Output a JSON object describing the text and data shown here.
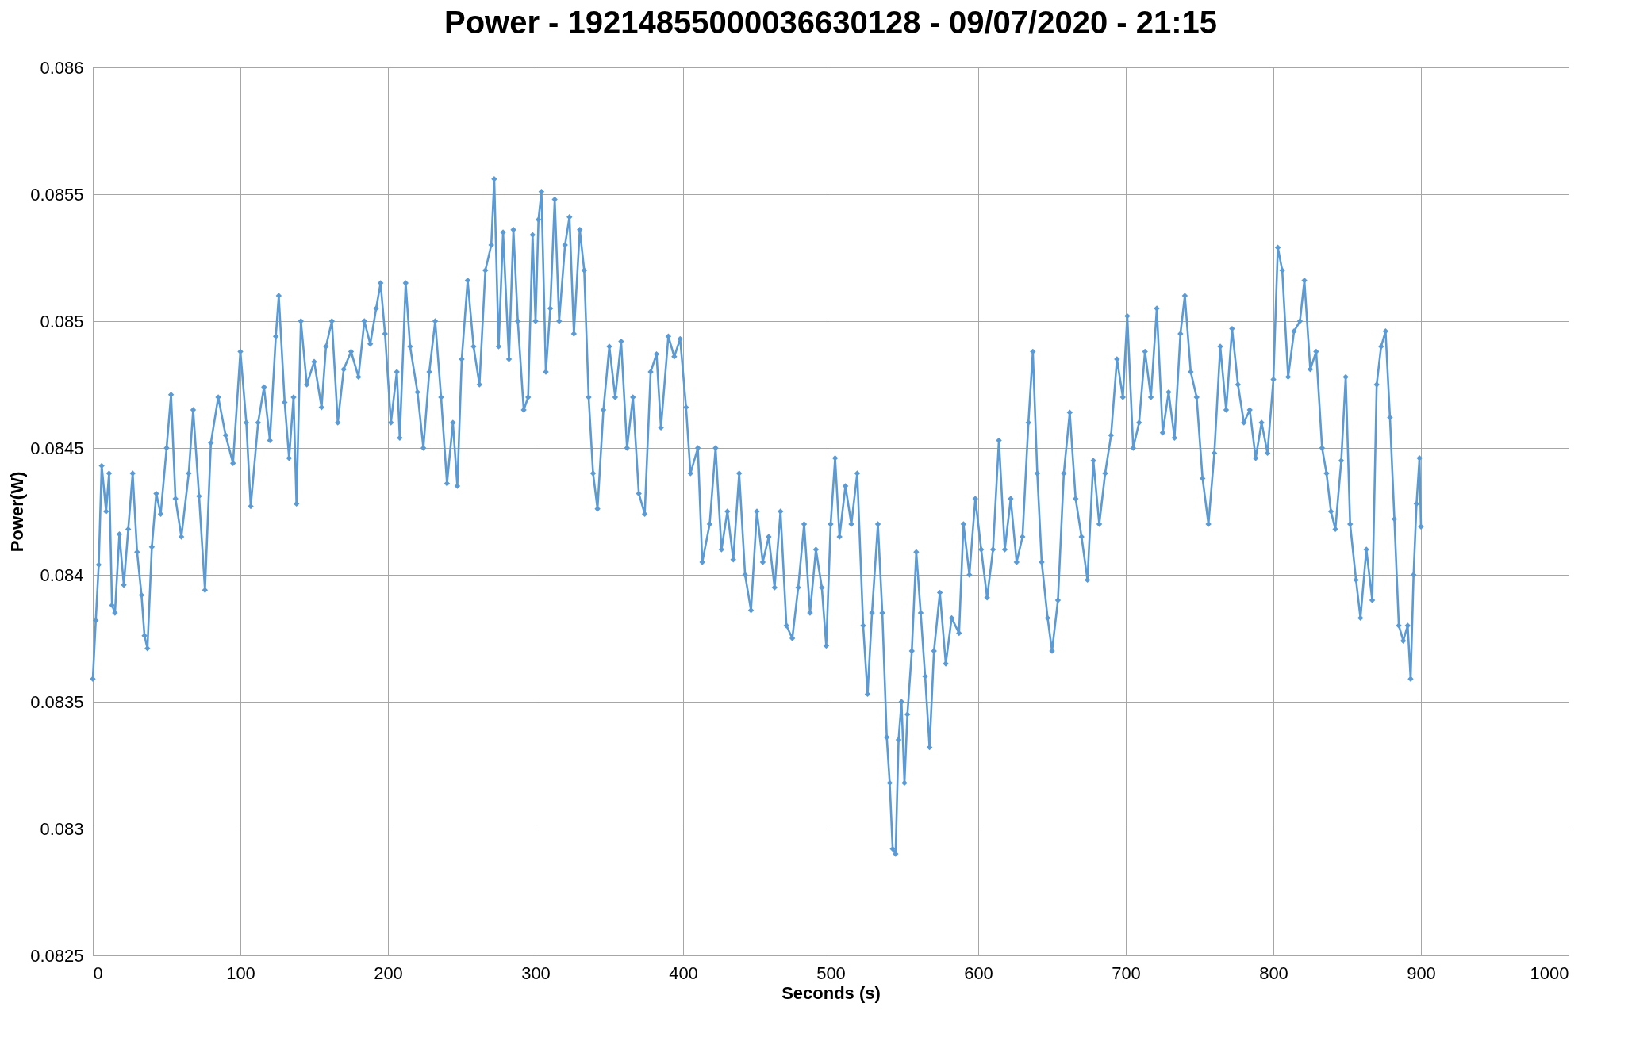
{
  "chart_data": {
    "type": "line",
    "title": "Power - 19214855000036630128 - 09/07/2020 - 21:15",
    "xlabel": "Seconds (s)",
    "ylabel": "Power(W)",
    "xlim": [
      0,
      1000
    ],
    "xticks": [
      0,
      100,
      200,
      300,
      400,
      500,
      600,
      700,
      800,
      900,
      1000
    ],
    "ylim": [
      0.0825,
      0.086
    ],
    "yticks": [
      0.0825,
      0.083,
      0.0835,
      0.084,
      0.0845,
      0.085,
      0.0855,
      0.086
    ],
    "grid": true,
    "marker": "diamond",
    "line_style": "solid",
    "series": [
      {
        "color": "#5b9bd5",
        "x": [
          0,
          2,
          4,
          6,
          9,
          11,
          13,
          15,
          18,
          21,
          24,
          27,
          30,
          33,
          35,
          37,
          40,
          43,
          46,
          50,
          53,
          56,
          60,
          65,
          68,
          72,
          76,
          80,
          85,
          90,
          95,
          100,
          104,
          107,
          112,
          116,
          120,
          124,
          126,
          130,
          133,
          136,
          138,
          141,
          145,
          150,
          155,
          158,
          162,
          166,
          170,
          175,
          180,
          184,
          188,
          192,
          195,
          198,
          202,
          206,
          208,
          212,
          215,
          220,
          224,
          228,
          232,
          236,
          240,
          244,
          247,
          250,
          254,
          258,
          262,
          266,
          270,
          272,
          275,
          278,
          282,
          285,
          288,
          292,
          295,
          298,
          300,
          302,
          304,
          307,
          310,
          313,
          316,
          320,
          323,
          326,
          330,
          333,
          336,
          339,
          342,
          346,
          350,
          354,
          358,
          362,
          366,
          370,
          374,
          378,
          382,
          385,
          390,
          394,
          398,
          402,
          405,
          410,
          413,
          418,
          422,
          426,
          430,
          434,
          438,
          442,
          446,
          450,
          454,
          458,
          462,
          466,
          470,
          474,
          478,
          482,
          486,
          490,
          494,
          497,
          500,
          503,
          506,
          510,
          514,
          518,
          522,
          525,
          528,
          532,
          535,
          538,
          540,
          542,
          544,
          546,
          548,
          550,
          552,
          555,
          558,
          561,
          564,
          567,
          570,
          574,
          578,
          582,
          587,
          590,
          594,
          598,
          602,
          606,
          610,
          614,
          618,
          622,
          626,
          630,
          634,
          637,
          640,
          643,
          647,
          650,
          654,
          658,
          662,
          666,
          670,
          674,
          678,
          682,
          686,
          690,
          694,
          698,
          701,
          705,
          709,
          713,
          717,
          721,
          725,
          729,
          733,
          737,
          740,
          744,
          748,
          752,
          756,
          760,
          764,
          768,
          772,
          776,
          780,
          784,
          788,
          792,
          796,
          800,
          803,
          806,
          810,
          814,
          818,
          821,
          825,
          829,
          833,
          836,
          839,
          842,
          846,
          849,
          852,
          856,
          859,
          863,
          867,
          870,
          873,
          876,
          879,
          882,
          885,
          888,
          891,
          893,
          895,
          897,
          899,
          900
        ],
        "values": [
          0.08359,
          0.08382,
          0.08404,
          0.08443,
          0.08425,
          0.0844,
          0.08388,
          0.08385,
          0.08416,
          0.08396,
          0.08418,
          0.0844,
          0.08409,
          0.08392,
          0.08376,
          0.08371,
          0.08411,
          0.08432,
          0.08424,
          0.0845,
          0.08471,
          0.0843,
          0.08415,
          0.0844,
          0.08465,
          0.08431,
          0.08394,
          0.08452,
          0.0847,
          0.08455,
          0.08444,
          0.08488,
          0.0846,
          0.08427,
          0.0846,
          0.08474,
          0.08453,
          0.08494,
          0.0851,
          0.08468,
          0.08446,
          0.0847,
          0.08428,
          0.085,
          0.08475,
          0.08484,
          0.08466,
          0.0849,
          0.085,
          0.0846,
          0.08481,
          0.08488,
          0.08478,
          0.085,
          0.08491,
          0.08505,
          0.08515,
          0.08495,
          0.0846,
          0.0848,
          0.08454,
          0.08515,
          0.0849,
          0.08472,
          0.0845,
          0.0848,
          0.085,
          0.0847,
          0.08436,
          0.0846,
          0.08435,
          0.08485,
          0.08516,
          0.0849,
          0.08475,
          0.0852,
          0.0853,
          0.08556,
          0.0849,
          0.08535,
          0.08485,
          0.08536,
          0.085,
          0.08465,
          0.0847,
          0.08534,
          0.085,
          0.0854,
          0.08551,
          0.0848,
          0.08505,
          0.08548,
          0.085,
          0.0853,
          0.08541,
          0.08495,
          0.08536,
          0.0852,
          0.0847,
          0.0844,
          0.08426,
          0.08465,
          0.0849,
          0.0847,
          0.08492,
          0.0845,
          0.0847,
          0.08432,
          0.08424,
          0.0848,
          0.08487,
          0.08458,
          0.08494,
          0.08486,
          0.08493,
          0.08466,
          0.0844,
          0.0845,
          0.08405,
          0.0842,
          0.0845,
          0.0841,
          0.08425,
          0.08406,
          0.0844,
          0.084,
          0.08386,
          0.08425,
          0.08405,
          0.08415,
          0.08395,
          0.08425,
          0.0838,
          0.08375,
          0.08395,
          0.0842,
          0.08385,
          0.0841,
          0.08395,
          0.08372,
          0.0842,
          0.08446,
          0.08415,
          0.08435,
          0.0842,
          0.0844,
          0.0838,
          0.08353,
          0.08385,
          0.0842,
          0.08385,
          0.08336,
          0.08318,
          0.08292,
          0.0829,
          0.08335,
          0.0835,
          0.08318,
          0.08345,
          0.0837,
          0.08409,
          0.08385,
          0.0836,
          0.08332,
          0.0837,
          0.08393,
          0.08365,
          0.08383,
          0.08377,
          0.0842,
          0.084,
          0.0843,
          0.0841,
          0.08391,
          0.0841,
          0.08453,
          0.0841,
          0.0843,
          0.08405,
          0.08415,
          0.0846,
          0.08488,
          0.0844,
          0.08405,
          0.08383,
          0.0837,
          0.0839,
          0.0844,
          0.08464,
          0.0843,
          0.08415,
          0.08398,
          0.08445,
          0.0842,
          0.0844,
          0.08455,
          0.08485,
          0.0847,
          0.08502,
          0.0845,
          0.0846,
          0.08488,
          0.0847,
          0.08505,
          0.08456,
          0.08472,
          0.08454,
          0.08495,
          0.0851,
          0.0848,
          0.0847,
          0.08438,
          0.0842,
          0.08448,
          0.0849,
          0.08465,
          0.08497,
          0.08475,
          0.0846,
          0.08465,
          0.08446,
          0.0846,
          0.08448,
          0.08477,
          0.08529,
          0.0852,
          0.08478,
          0.08496,
          0.085,
          0.08516,
          0.08481,
          0.08488,
          0.0845,
          0.0844,
          0.08425,
          0.08418,
          0.08445,
          0.08478,
          0.0842,
          0.08398,
          0.08383,
          0.0841,
          0.0839,
          0.08475,
          0.0849,
          0.08496,
          0.08462,
          0.08422,
          0.0838,
          0.08374,
          0.0838,
          0.08359,
          0.084,
          0.08428,
          0.08446,
          0.08419
        ]
      }
    ]
  }
}
